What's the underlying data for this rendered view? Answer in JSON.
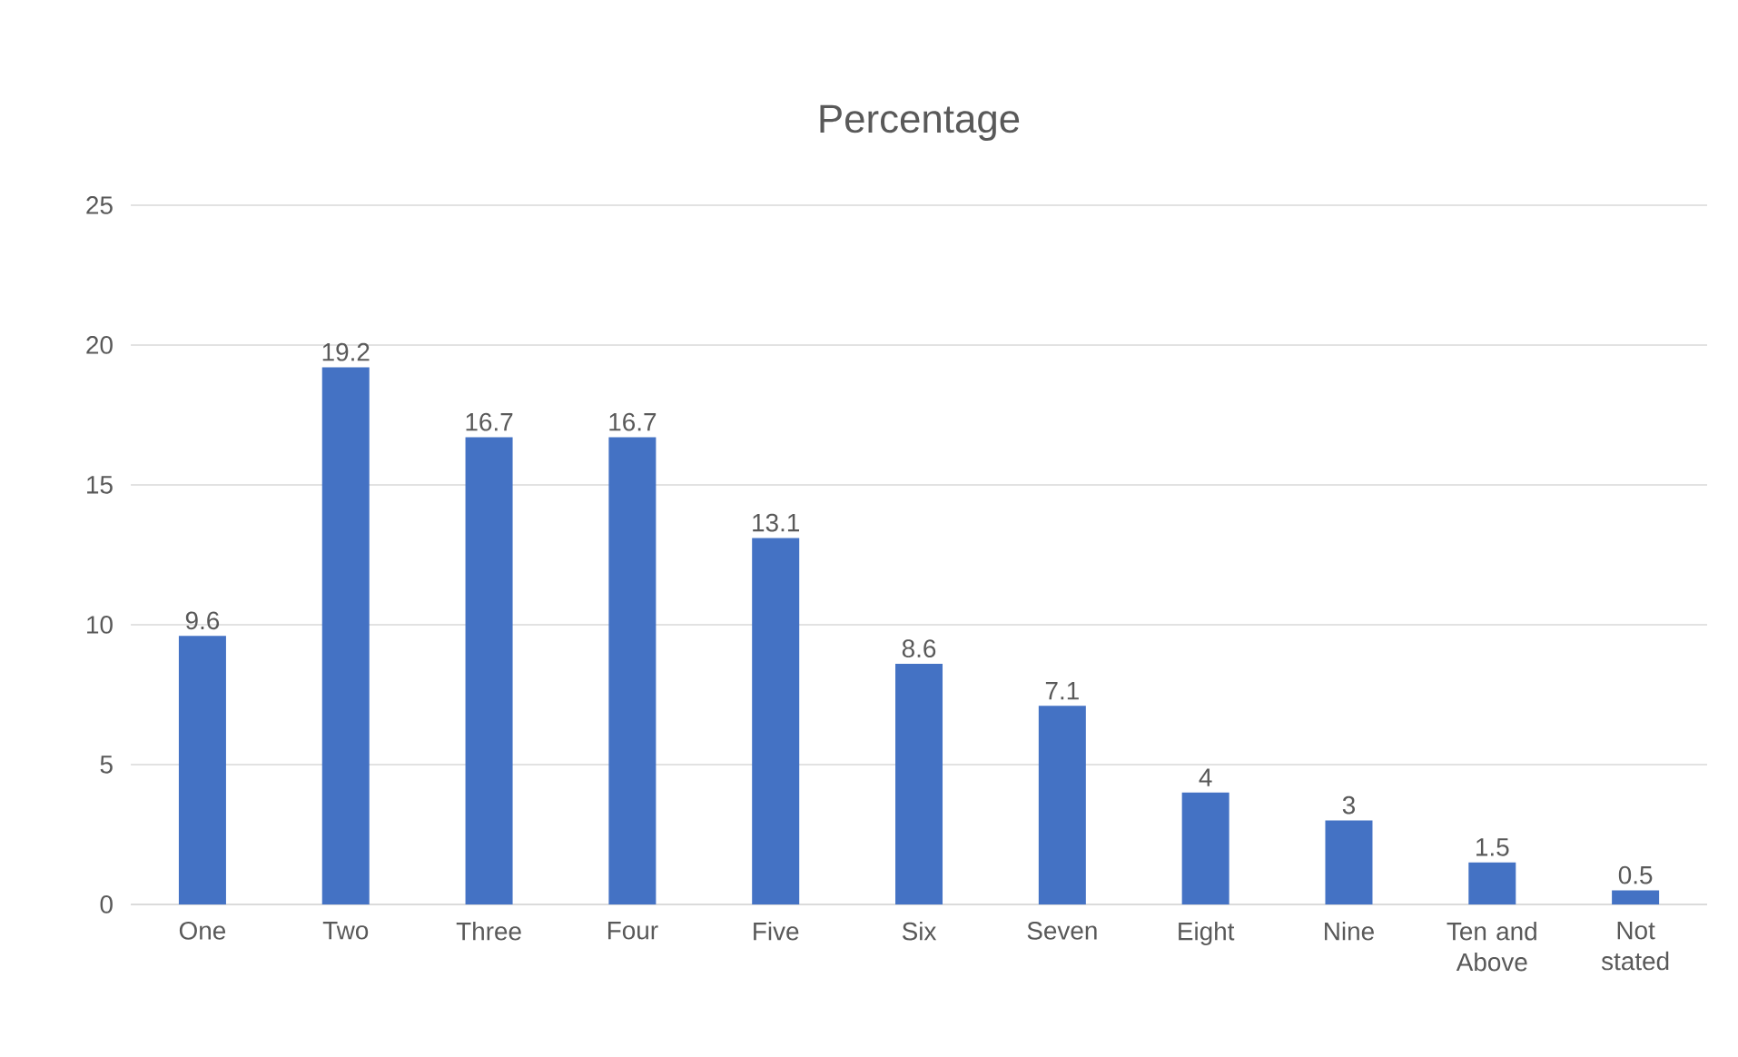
{
  "chart_data": {
    "type": "bar",
    "title": "Percentage",
    "categories": [
      "One",
      "Two",
      "Three",
      "Four",
      "Five",
      "Six",
      "Seven",
      "Eight",
      "Nine",
      "Ten and Above",
      "Not stated"
    ],
    "values": [
      9.6,
      19.2,
      16.7,
      16.7,
      13.1,
      8.6,
      7.1,
      4,
      3,
      1.5,
      0.5
    ],
    "color": "#4472c4",
    "ylim": [
      0,
      25
    ],
    "yticks": [
      0,
      5,
      10,
      15,
      20,
      25
    ],
    "grid": "y",
    "data_labels": true
  }
}
